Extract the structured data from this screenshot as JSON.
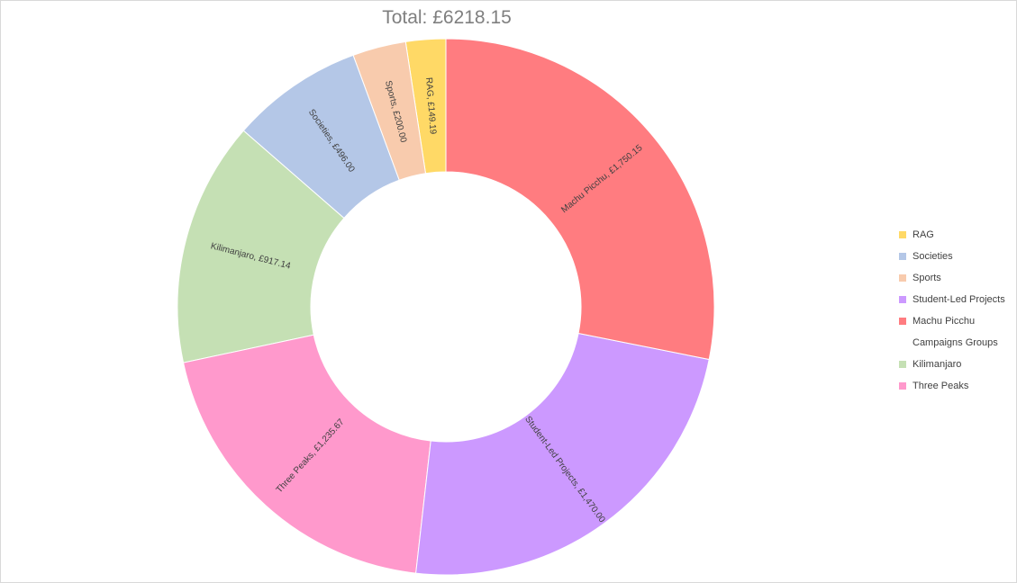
{
  "chart_data": {
    "type": "pie",
    "variant": "doughnut",
    "title": "Total: £6218.15",
    "legend_position": "right",
    "slices": [
      {
        "name": "RAG",
        "value": 149.19,
        "label": "RAG, £149.19",
        "color": "#ffd966"
      },
      {
        "name": "Sports",
        "value": 200.0,
        "label": "Sports, £200.00",
        "color": "#f8cbad"
      },
      {
        "name": "Societies",
        "value": 496.0,
        "label": "Societies, £496.00",
        "color": "#b4c7e7"
      },
      {
        "name": "Kilimanjaro",
        "value": 917.14,
        "label": "Kilimanjaro, £917.14",
        "color": "#c5e0b4"
      },
      {
        "name": "Three Peaks",
        "value": 1235.67,
        "label": "Three Peaks, £1,235.67",
        "color": "#ff99cc"
      },
      {
        "name": "Student-Led Projects",
        "value": 1470.0,
        "label": "Student-Led Projects, £1,470.00",
        "color": "#cc99ff"
      },
      {
        "name": "Campaigns Groups",
        "value": 0,
        "label": "",
        "color": "#ffffff"
      },
      {
        "name": "Machu Picchu",
        "value": 1750.15,
        "label": "Machu Picchu, £1,750.15",
        "color": "#ff7c80"
      }
    ],
    "legend": [
      {
        "name": "RAG",
        "color": "#ffd966"
      },
      {
        "name": "Societies",
        "color": "#b4c7e7"
      },
      {
        "name": "Sports",
        "color": "#f8cbad"
      },
      {
        "name": "Student-Led Projects",
        "color": "#cc99ff"
      },
      {
        "name": "Machu Picchu",
        "color": "#ff7c80"
      },
      {
        "name": "Campaigns Groups",
        "color": "#ffffff"
      },
      {
        "name": "Kilimanjaro",
        "color": "#c5e0b4"
      },
      {
        "name": "Three Peaks",
        "color": "#ff99cc"
      }
    ]
  }
}
